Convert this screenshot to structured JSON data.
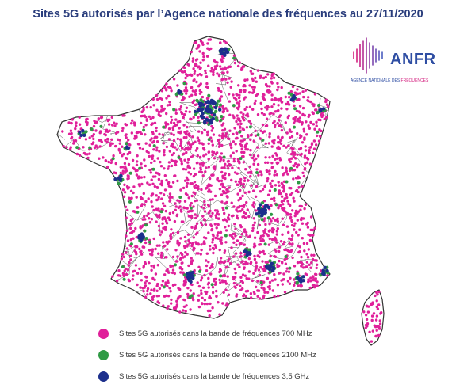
{
  "title": "Sites 5G autorisés par l’Agence nationale des fréquences au 27/11/2020",
  "logo": {
    "wordmark": "ANFR",
    "tagline_main": "AGENCE NATIONALE DES ",
    "tagline_accent": "FRÉQUENCES",
    "icon": "signal-waves-icon",
    "color": "#2f4ea3",
    "accent_color": "#d4207f"
  },
  "legend": [
    {
      "label": "Sites 5G autorisés dans la bande de fréquences 700 MHz",
      "color": "#e0209a"
    },
    {
      "label": "Sites 5G autorisés dans la bande de fréquences 2100 MHz",
      "color": "#2f9a45"
    },
    {
      "label": "Sites 5G autorisés dans la bande de fréquences 3,5 GHz",
      "color": "#1c2f8c"
    }
  ]
}
